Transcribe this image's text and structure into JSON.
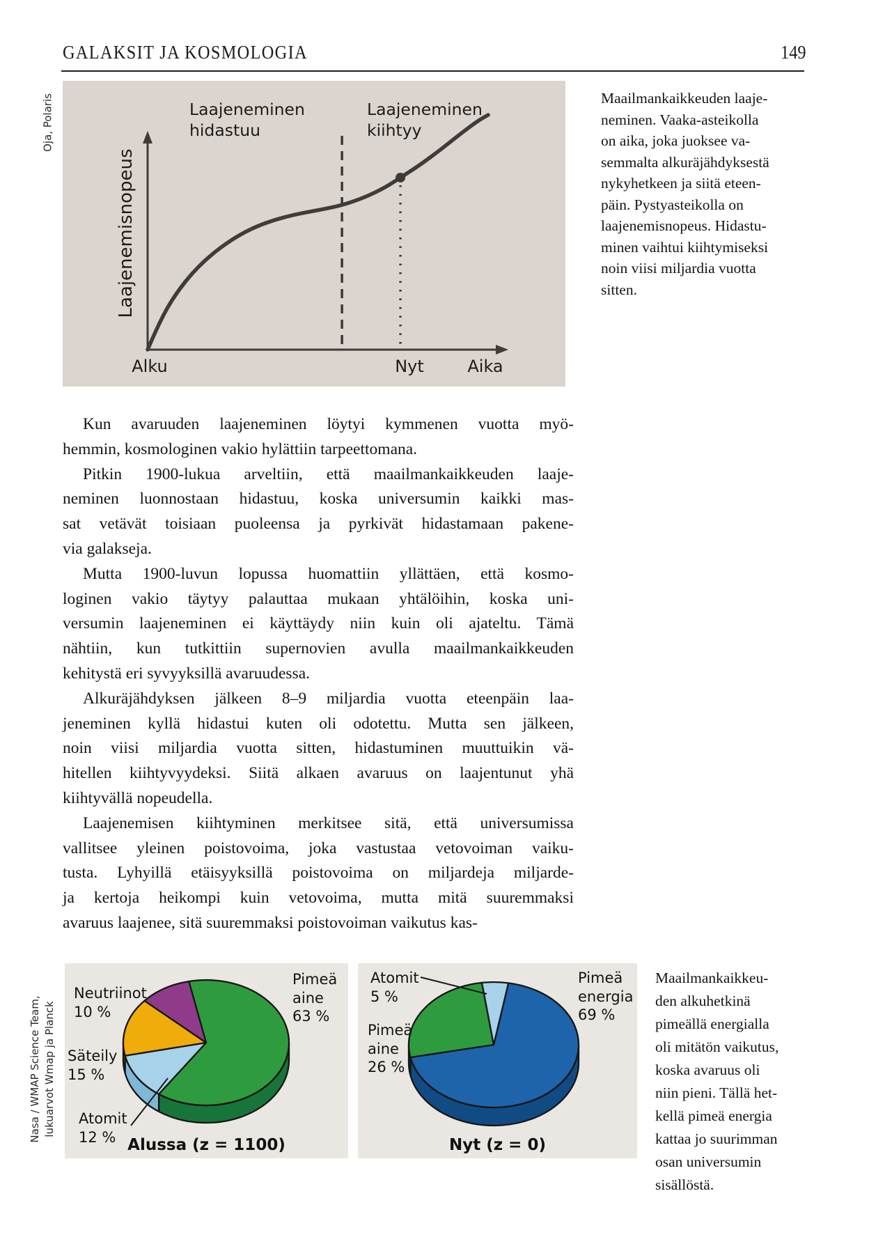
{
  "header": {
    "title": "GALAKSIT JA KOSMOLOGIA",
    "page_number": "149"
  },
  "credits": {
    "figure1": "Oja, Polaris",
    "figure2_line1": "Nasa / WMAP Science Team,",
    "figure2_line2": "lukuarvot Wmap ja Planck"
  },
  "expansion_chart": {
    "annotation_slowing_line1": "Laajeneminen",
    "annotation_slowing_line2": "hidastuu",
    "annotation_accel_line1": "Laajeneminen",
    "annotation_accel_line2": "kiihtyy",
    "y_axis_label": "Laajenemisnopeus",
    "x_tick_start": "Alku",
    "x_tick_now": "Nyt",
    "x_axis_label": "Aika"
  },
  "figure1_caption_lines": [
    "Maailmankaikkeuden laaje-",
    "neminen. Vaaka-asteikolla",
    "on aika, joka juoksee va-",
    "semmalta alkuräjähdyksestä",
    "nykyhetkeen ja siitä eteen-",
    "päin. Pystyasteikolla on",
    "laajenemisnopeus. Hidastu-",
    "minen vaihtui kiihtymiseksi",
    "noin viisi miljardia vuotta",
    "sitten."
  ],
  "body_paragraphs": [
    [
      "Kun avaruuden laajeneminen löytyi kymmenen vuotta myö-",
      "hemmin, kosmologinen vakio hylättiin tarpeettomana."
    ],
    [
      "Pitkin 1900-lukua arveltiin, että maailmankaikkeuden laaje-",
      "neminen luonnostaan hidastuu, koska universumin kaikki mas-",
      "sat vetävät toisiaan puoleensa ja pyrkivät hidastamaan pakene-",
      "via galakseja."
    ],
    [
      "Mutta 1900-luvun lopussa huomattiin yllättäen, että kosmo-",
      "loginen vakio täytyy palauttaa mukaan yhtälöihin, koska uni-",
      "versumin laajeneminen ei käyttäydy niin kuin oli ajateltu. Tämä",
      "nähtiin, kun tutkittiin supernovien avulla maailmankaikkeuden",
      "kehitystä eri syvyyksillä avaruudessa."
    ],
    [
      "Alkuräjähdyksen jälkeen 8–9 miljardia vuotta eteenpäin laa-",
      "jeneminen kyllä hidastui kuten oli odotettu. Mutta sen jälkeen,",
      "noin viisi miljardia vuotta sitten, hidastuminen muuttuikin vä-",
      "hitellen kiihtyvyydeksi. Siitä alkaen avaruus on laajentunut yhä",
      "kiihtyvällä nopeudella."
    ],
    [
      "Laajenemisen kiihtyminen merkitsee sitä, että universumissa",
      "vallitsee yleinen poistovoima, joka vastustaa vetovoiman vaiku-",
      "tusta. Lyhyillä etäisyyksillä poistovoima on miljardeja miljarde-",
      "ja kertoja heikompi kuin vetovoima, mutta mitä suuremmaksi",
      "avaruus laajenee, sitä suuremmaksi poistovoiman vaikutus kas-"
    ]
  ],
  "pies": {
    "left": {
      "title": "Alussa (z = 1100)",
      "labels": {
        "neutrinos": [
          "Neutriinot",
          "10 %"
        ],
        "dark_matter": [
          "Pimeä",
          "aine",
          "63 %"
        ],
        "radiation": [
          "Säteily",
          "15 %"
        ],
        "atoms": [
          "Atomit",
          "12 %"
        ]
      }
    },
    "right": {
      "title": "Nyt (z = 0)",
      "labels": {
        "atoms": [
          "Atomit",
          "5 %"
        ],
        "dark_matter": [
          "Pimeä",
          "aine",
          "26 %"
        ],
        "dark_energy": [
          "Pimeä",
          "energia",
          "69 %"
        ]
      }
    }
  },
  "figure2_caption_lines": [
    "Maailmankaikkeu-",
    "den alkuhetkinä",
    "pimeällä energialla",
    "oli mitätön vaikutus,",
    "koska avaruus oli",
    "niin pieni. Tällä het-",
    "kellä pimeä energia",
    "kattaa jo suurimman",
    "osan universumin",
    "sisällöstä."
  ],
  "colors": {
    "chart_panel_bg": "#dcd4ce",
    "pie_panel_bg": "#eae7e2",
    "curve": "#3f3c3a",
    "dark_matter_green": "#2f9b3f",
    "dark_matter_green_side": "#17743a",
    "neutrinos_purple": "#8f3b8a",
    "radiation_orange": "#f0ac0b",
    "atoms_lightblue": "#a8d2ea",
    "atoms_lightblue_side": "#7fb8d6",
    "dark_energy_blue": "#1d64ab",
    "dark_energy_blue_side": "#114b84"
  },
  "chart_data": [
    {
      "type": "line",
      "title": "Maailmankaikkeuden laajeneminen",
      "xlabel": "Aika",
      "ylabel": "Laajenemisnopeus",
      "x_ticks": [
        "Alku",
        "Nyt"
      ],
      "annotations": [
        "Laajeneminen hidastuu",
        "Laajeneminen kiihtyy"
      ],
      "axes_numeric": false,
      "divider_dashed_x": 0.565,
      "now_dotted_x": 0.735,
      "points_normalized": [
        [
          0,
          0
        ],
        [
          0.035,
          0.12
        ],
        [
          0.08,
          0.235
        ],
        [
          0.14,
          0.345
        ],
        [
          0.21,
          0.435
        ],
        [
          0.285,
          0.505
        ],
        [
          0.36,
          0.55
        ],
        [
          0.435,
          0.578
        ],
        [
          0.5,
          0.595
        ],
        [
          0.565,
          0.615
        ],
        [
          0.63,
          0.648
        ],
        [
          0.69,
          0.69
        ],
        [
          0.735,
          0.733
        ],
        [
          0.79,
          0.785
        ],
        [
          0.85,
          0.85
        ],
        [
          0.91,
          0.92
        ],
        [
          0.96,
          0.975
        ],
        [
          0.99,
          1.0
        ]
      ],
      "marker_at_x": 0.735
    },
    {
      "type": "pie",
      "title": "Alussa (z = 1100)",
      "start_angle": 258,
      "slices": [
        {
          "label": "Pimeä aine",
          "value": 63,
          "color": "#2f9b3f",
          "side": "#17743a"
        },
        {
          "label": "Atomit",
          "value": 12,
          "color": "#a8d2ea",
          "side": "#7fb8d6"
        },
        {
          "label": "Säteily",
          "value": 15,
          "color": "#f0ac0b",
          "side": "#c78e09"
        },
        {
          "label": "Neutriinot",
          "value": 10,
          "color": "#8f3b8a",
          "side": "#6e2d6a"
        }
      ]
    },
    {
      "type": "pie",
      "title": "Nyt (z = 0)",
      "start_angle": 280,
      "slices": [
        {
          "label": "Pimeä energia",
          "value": 69,
          "color": "#1d64ab",
          "side": "#114b84"
        },
        {
          "label": "Pimeä aine",
          "value": 26,
          "color": "#2f9b3f",
          "side": "#17743a"
        },
        {
          "label": "Atomit",
          "value": 5,
          "color": "#a8d2ea",
          "side": "#7fb8d6"
        }
      ]
    }
  ]
}
